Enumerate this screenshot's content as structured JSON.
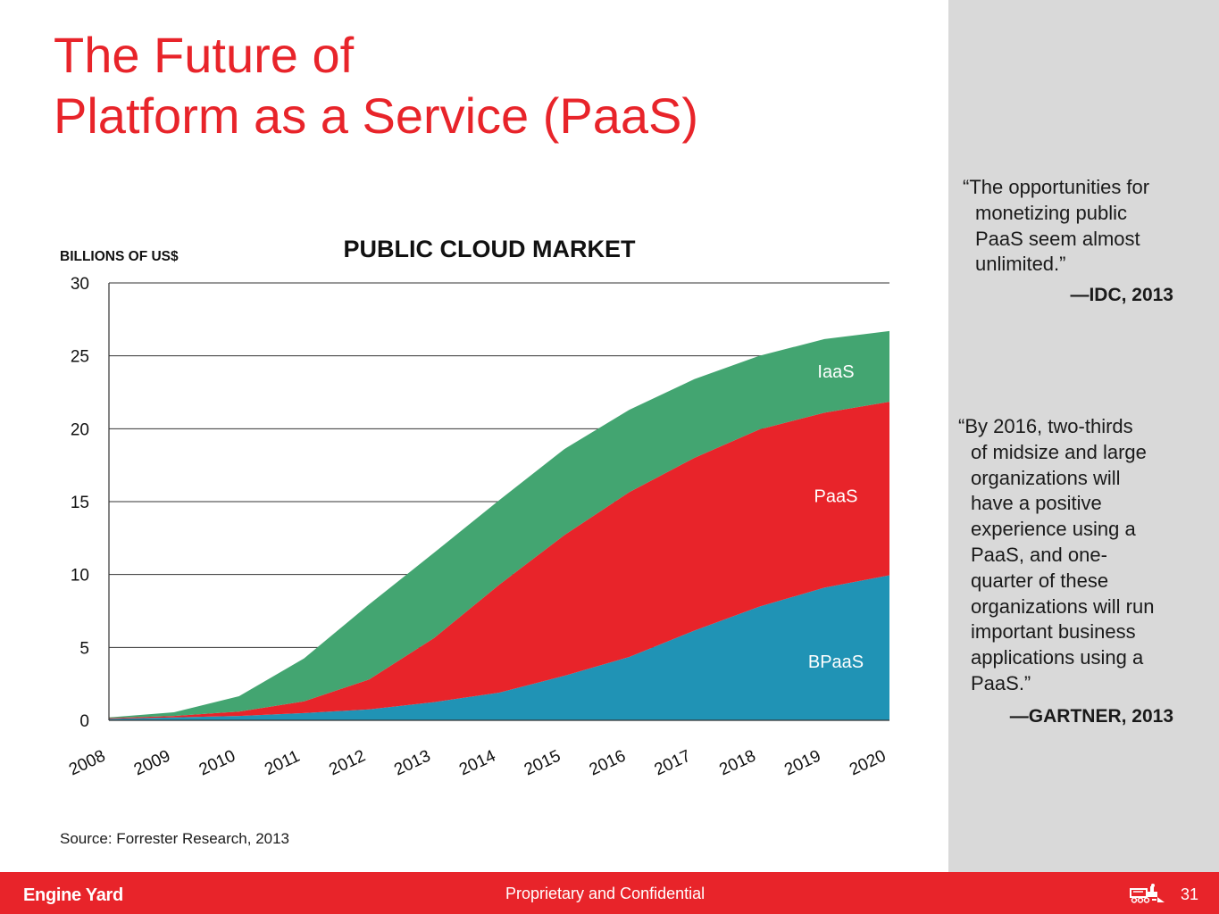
{
  "slide": {
    "title_lines": [
      "The Future of",
      "Platform as a Service (PaaS)"
    ],
    "source": "Source: Forrester Research, 2013",
    "page_number": "31"
  },
  "footer": {
    "logo_text": "Engine Yard",
    "confidential": "Proprietary and Confidential",
    "icon": "train-icon"
  },
  "quotes": [
    {
      "lines": [
        "“The opportunities for",
        "monetizing public",
        "PaaS seem almost",
        "unlimited.”"
      ],
      "attribution": "—IDC, 2013"
    },
    {
      "lines": [
        "“By 2016, two-thirds",
        "of midsize and large",
        "organizations will",
        "have a positive",
        "experience using a",
        "PaaS, and one-",
        "quarter of these",
        "organizations will run",
        "important business",
        "applications using a",
        "PaaS.”"
      ],
      "attribution": "—GARTNER, 2013"
    }
  ],
  "colors": {
    "brand_red": "#e8242a",
    "iaas": "#43a571",
    "paas": "#e8242a",
    "bpaas": "#2093b5",
    "panel_gray": "#d9d9d9"
  },
  "chart_data": {
    "type": "area",
    "stacked": true,
    "title": "PUBLIC CLOUD MARKET",
    "ylabel": "BILLIONS OF US$",
    "xlabel": "",
    "x": [
      "2008",
      "2009",
      "2010",
      "2011",
      "2012",
      "2013",
      "2014",
      "2015",
      "2016",
      "2017",
      "2018",
      "2019",
      "2020"
    ],
    "ylim": [
      0,
      30
    ],
    "yticks": [
      0,
      5,
      10,
      15,
      20,
      25,
      30
    ],
    "grid": true,
    "legend": "inline labels on right side of areas",
    "series": [
      {
        "name": "BPaaS",
        "values": [
          0.1,
          0.2,
          0.3,
          0.5,
          0.75,
          1.25,
          1.9,
          3.05,
          4.35,
          6.15,
          7.8,
          9.1,
          9.95
        ]
      },
      {
        "name": "PaaS",
        "values": [
          0.05,
          0.1,
          0.3,
          0.8,
          2.05,
          4.4,
          7.4,
          9.65,
          11.3,
          11.85,
          12.15,
          12.0,
          11.9
        ]
      },
      {
        "name": "IaaS",
        "values": [
          0.05,
          0.25,
          1.05,
          2.95,
          5.15,
          5.85,
          5.8,
          5.9,
          5.65,
          5.4,
          5.05,
          5.05,
          4.85
        ]
      }
    ]
  }
}
